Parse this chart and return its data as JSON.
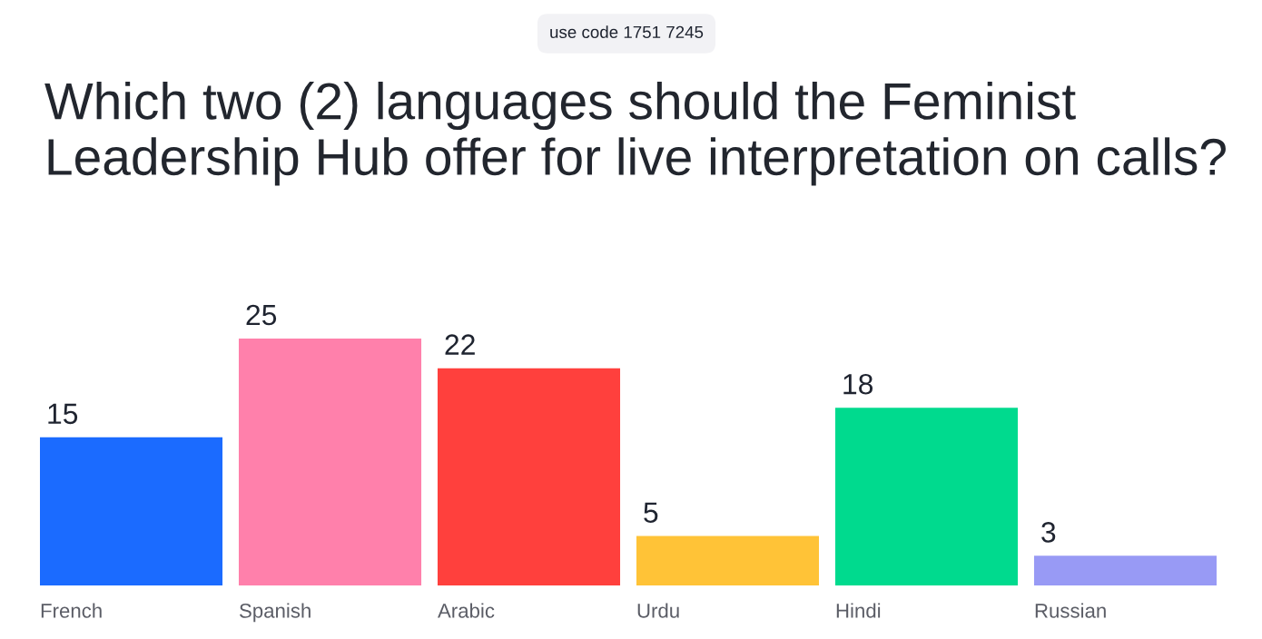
{
  "chart_data": {
    "type": "bar",
    "title": "Which two (2) languages should the Feminist Leadership Hub offer for live interpretation on calls?",
    "categories": [
      "French",
      "Spanish",
      "Arabic",
      "Urdu",
      "Hindi",
      "Russian"
    ],
    "values": [
      15,
      25,
      22,
      5,
      18,
      3
    ],
    "colors": [
      "#1b6bff",
      "#ff80ab",
      "#ff403d",
      "#ffc337",
      "#00da8e",
      "#989af5"
    ],
    "data_labels": true,
    "annotations": [
      "use code 1751 7245"
    ]
  }
}
